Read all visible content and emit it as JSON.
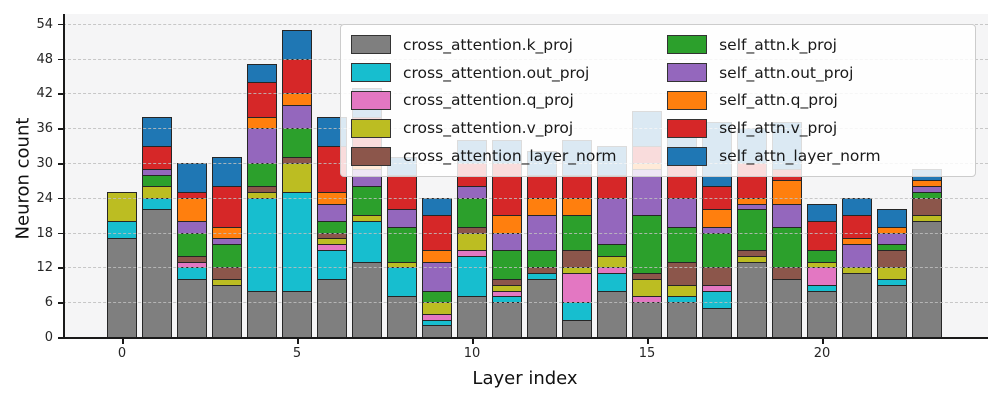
{
  "chart_data": {
    "type": "bar",
    "stacked": true,
    "title": "",
    "xlabel": "Layer index",
    "ylabel": "Neuron count",
    "x": [
      0,
      1,
      2,
      3,
      4,
      5,
      6,
      7,
      8,
      9,
      10,
      11,
      12,
      13,
      14,
      15,
      16,
      17,
      18,
      19,
      20,
      21,
      22,
      23
    ],
    "xticks": [
      0,
      5,
      10,
      15,
      20
    ],
    "yticks": [
      0,
      6,
      12,
      18,
      24,
      30,
      36,
      42,
      48,
      54
    ],
    "ylim": [
      0,
      55.7
    ],
    "grid": "horizontal-dashed",
    "legend_position": "upper right",
    "legend_columns": 2,
    "series": [
      {
        "name": "cross_attention.k_proj",
        "color": "#7f7f7f",
        "values": [
          17,
          22,
          10,
          9,
          8,
          8,
          10,
          13,
          7,
          2,
          7,
          6,
          10,
          3,
          8,
          6,
          6,
          5,
          13,
          10,
          8,
          11,
          9,
          20
        ]
      },
      {
        "name": "cross_attention.out_proj",
        "color": "#17becf",
        "values": [
          3,
          2,
          2,
          0,
          16,
          17,
          5,
          7,
          5,
          1,
          7,
          1,
          1,
          3,
          3,
          0,
          1,
          3,
          0,
          0,
          1,
          0,
          1,
          0
        ]
      },
      {
        "name": "cross_attention.q_proj",
        "color": "#e377c2",
        "values": [
          0,
          0,
          1,
          0,
          0,
          0,
          1,
          0,
          0,
          1,
          1,
          1,
          0,
          5,
          1,
          1,
          0,
          1,
          0,
          0,
          3,
          0,
          0,
          0
        ]
      },
      {
        "name": "cross_attention.v_proj",
        "color": "#bcbd22",
        "values": [
          5,
          2,
          0,
          1,
          1,
          5,
          1,
          1,
          1,
          2,
          3,
          1,
          0,
          1,
          2,
          3,
          2,
          0,
          1,
          0,
          1,
          1,
          2,
          1
        ]
      },
      {
        "name": "cross_attention_layer_norm",
        "color": "#8c564b",
        "values": [
          0,
          0,
          1,
          2,
          1,
          1,
          1,
          0,
          0,
          0,
          1,
          1,
          1,
          3,
          0,
          1,
          4,
          3,
          1,
          2,
          0,
          0,
          3,
          3
        ]
      },
      {
        "name": "self_attn.k_proj",
        "color": "#2ca02c",
        "values": [
          0,
          2,
          4,
          4,
          4,
          5,
          2,
          5,
          6,
          2,
          5,
          5,
          3,
          6,
          2,
          10,
          6,
          6,
          7,
          7,
          2,
          0,
          1,
          1
        ]
      },
      {
        "name": "self_attn.out_proj",
        "color": "#9467bd",
        "values": [
          0,
          1,
          2,
          1,
          6,
          4,
          3,
          3,
          3,
          5,
          2,
          3,
          6,
          0,
          8,
          8,
          5,
          1,
          1,
          4,
          0,
          4,
          2,
          1
        ]
      },
      {
        "name": "self_attn.q_proj",
        "color": "#ff7f0e",
        "values": [
          0,
          0,
          4,
          2,
          2,
          2,
          2,
          3,
          0,
          2,
          0,
          3,
          3,
          3,
          0,
          1,
          0,
          3,
          1,
          4,
          0,
          1,
          1,
          1
        ]
      },
      {
        "name": "self_attn.v_proj",
        "color": "#d62728",
        "values": [
          0,
          4,
          1,
          7,
          6,
          6,
          8,
          6,
          6,
          6,
          4,
          9,
          4,
          4,
          4,
          3,
          6,
          4,
          6,
          2,
          5,
          4,
          0,
          0
        ]
      },
      {
        "name": "self_attn_layer_norm",
        "color": "#1f77b4",
        "values": [
          0,
          5,
          5,
          5,
          3,
          5,
          5,
          5,
          3,
          3,
          4,
          4,
          4,
          6,
          5,
          6,
          6,
          11,
          6,
          8,
          3,
          3,
          3,
          2
        ]
      }
    ]
  }
}
